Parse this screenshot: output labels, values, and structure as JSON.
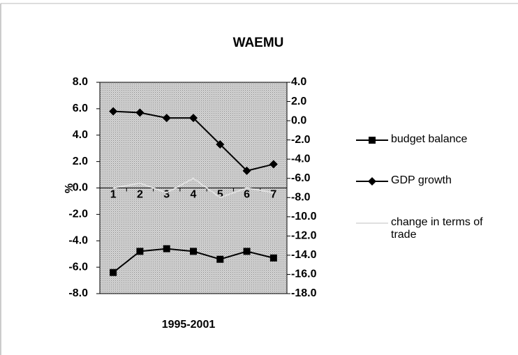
{
  "chart_data": {
    "type": "line",
    "title": "WAEMU",
    "x_label": "1995-2001",
    "y_label": "%",
    "categories": [
      "1",
      "2",
      "3",
      "4",
      "5",
      "6",
      "7"
    ],
    "series": [
      {
        "name": "budget balance",
        "color": "#000000",
        "marker": "square",
        "values": [
          -6.4,
          -4.8,
          -4.6,
          -4.8,
          -5.4,
          -4.8,
          -5.3
        ]
      },
      {
        "name": "GDP growth",
        "color": "#000000",
        "marker": "diamond",
        "values": [
          5.8,
          5.7,
          5.3,
          5.3,
          3.3,
          1.3,
          1.8
        ]
      },
      {
        "name": "change in terms of trade",
        "color": "#e0e0e0",
        "marker": "none",
        "axis": "y2",
        "values": [
          -7.0,
          -6.5,
          -7.5,
          -6.0,
          -8.0,
          -7.0,
          -7.5
        ]
      }
    ],
    "ylim": [
      -8,
      8
    ],
    "yticks": [
      {
        "value": -8,
        "label": "-8.0"
      },
      {
        "value": -6,
        "label": "-6.0"
      },
      {
        "value": -4,
        "label": "-4.0"
      },
      {
        "value": -2,
        "label": "-2.0"
      },
      {
        "value": 0,
        "label": "0.0"
      },
      {
        "value": 2,
        "label": "2.0"
      },
      {
        "value": 4,
        "label": "4.0"
      },
      {
        "value": 6,
        "label": "6.0"
      },
      {
        "value": 8,
        "label": "8.0"
      }
    ],
    "y2lim": [
      -18,
      4
    ],
    "y2ticks": [
      {
        "value": -18,
        "label": "-18.0"
      },
      {
        "value": -16,
        "label": "-16.0"
      },
      {
        "value": -14,
        "label": "-14.0"
      },
      {
        "value": -12,
        "label": "-12.0"
      },
      {
        "value": -10,
        "label": "-10.0"
      },
      {
        "value": -8,
        "label": "-8.0"
      },
      {
        "value": -6,
        "label": "-6.0"
      },
      {
        "value": -4,
        "label": "-4.0"
      },
      {
        "value": -2,
        "label": "-2.0"
      },
      {
        "value": 0,
        "label": "0.0"
      },
      {
        "value": 2,
        "label": "2.0"
      },
      {
        "value": 4,
        "label": "4.0"
      }
    ],
    "legend": "right",
    "grid": false
  }
}
